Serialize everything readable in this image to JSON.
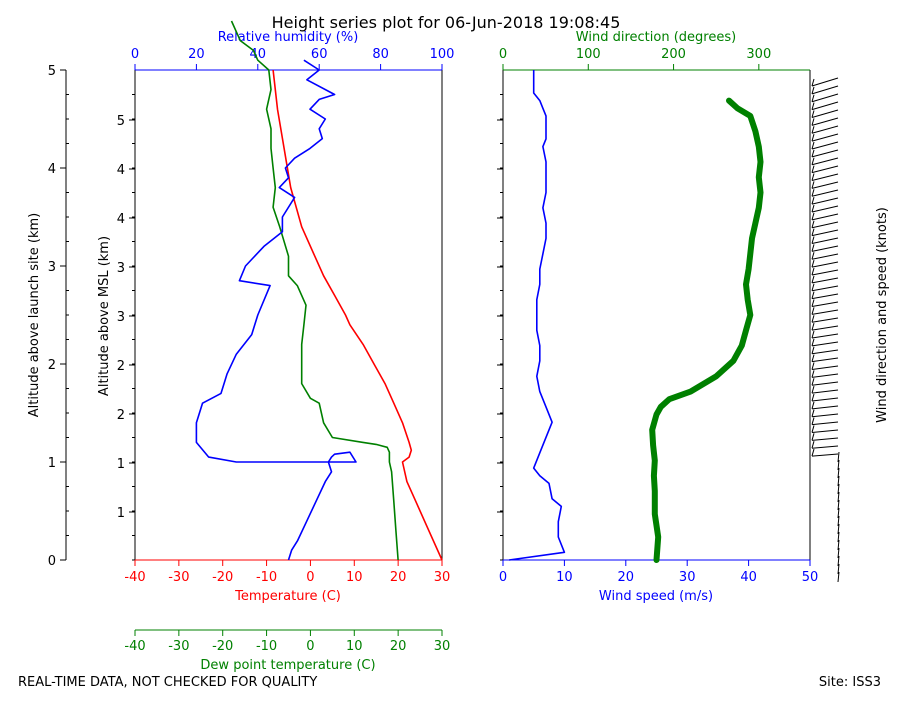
{
  "title": "Height series plot for 06-Jun-2018 19:08:45",
  "footer": {
    "left": "REAL-TIME DATA, NOT CHECKED FOR QUALITY",
    "right": "Site: ISS3"
  },
  "colors": {
    "temperature": "#ff0000",
    "dewpoint": "#008000",
    "humidity": "#0000ff",
    "wind_speed": "#0000ff",
    "wind_direction": "#008000",
    "axis": "#000000"
  },
  "chart_data": [
    {
      "type": "line",
      "name": "thermo",
      "axes": {
        "left_outer": {
          "label": "Altitude above launch site (km)",
          "ticks": [
            0,
            1,
            2,
            3,
            4,
            5
          ],
          "range": [
            0,
            5
          ]
        },
        "left_inner": {
          "label": "Altitude above MSL (km)",
          "ticks": [
            "1",
            "1",
            "2",
            "2",
            "3",
            "3",
            "4",
            "4",
            "5"
          ],
          "range": [
            0.5,
            5.5
          ]
        },
        "bottom": {
          "label": "Temperature (C)",
          "ticks": [
            -40,
            -30,
            -20,
            -10,
            0,
            10,
            20,
            30
          ],
          "range": [
            -40,
            30
          ]
        },
        "bottom2": {
          "label": "Dew point temperature (C)",
          "ticks": [
            -40,
            -30,
            -20,
            -10,
            0,
            10,
            20,
            30
          ],
          "range": [
            -40,
            30
          ]
        },
        "top": {
          "label": "Relative humidity (%)",
          "ticks": [
            0,
            20,
            40,
            60,
            80,
            100
          ],
          "range": [
            0,
            100
          ]
        }
      },
      "series": [
        {
          "name": "Temperature",
          "axis": "bottom",
          "x": [
            30,
            27,
            24,
            22,
            21,
            22.5,
            23,
            22.5,
            21,
            19,
            17,
            14.5,
            12,
            9,
            8,
            5.5,
            3,
            1,
            -2,
            -4.5,
            -6,
            -7.5,
            -8.5
          ],
          "y": [
            0.0,
            0.3,
            0.6,
            0.8,
            1.0,
            1.05,
            1.12,
            1.2,
            1.4,
            1.6,
            1.8,
            2.0,
            2.2,
            2.4,
            2.5,
            2.7,
            2.9,
            3.1,
            3.4,
            3.8,
            4.2,
            4.6,
            5.0
          ]
        },
        {
          "name": "Dew point",
          "axis": "bottom2",
          "x": [
            20,
            19.5,
            19,
            18.5,
            18,
            18,
            17.5,
            15,
            12,
            5,
            3,
            2,
            0,
            -2,
            -2,
            -2,
            -1.5,
            -1,
            -3,
            -5,
            -5,
            -7,
            -8.5,
            -8,
            -8.5,
            -9,
            -9,
            -10,
            -9,
            -9.5,
            -12,
            -13,
            -16,
            -17,
            -18
          ],
          "y": [
            0.0,
            0.3,
            0.6,
            0.9,
            1.0,
            1.1,
            1.15,
            1.18,
            1.2,
            1.25,
            1.4,
            1.6,
            1.65,
            1.8,
            2.0,
            2.2,
            2.4,
            2.6,
            2.8,
            2.9,
            3.1,
            3.4,
            3.6,
            3.8,
            4.0,
            4.2,
            4.4,
            4.6,
            4.8,
            5.0,
            5.1,
            5.2,
            5.3,
            5.4,
            5.5
          ]
        },
        {
          "name": "Relative humidity",
          "axis": "top",
          "x": [
            50,
            51,
            53,
            56,
            59,
            62,
            64,
            63,
            64,
            65,
            70,
            72,
            60,
            33,
            24,
            20,
            20,
            22,
            28,
            30,
            33,
            38,
            40,
            44,
            34,
            36,
            42,
            48,
            48,
            52,
            47,
            50,
            49,
            52,
            57,
            61,
            60,
            62,
            57,
            60,
            65,
            56,
            60,
            55
          ],
          "y": [
            0.0,
            0.1,
            0.2,
            0.4,
            0.6,
            0.8,
            0.9,
            1.0,
            1.05,
            1.08,
            1.1,
            1.0,
            1.0,
            1.0,
            1.05,
            1.2,
            1.4,
            1.6,
            1.7,
            1.9,
            2.1,
            2.3,
            2.5,
            2.8,
            2.85,
            3.0,
            3.2,
            3.35,
            3.5,
            3.7,
            3.8,
            3.9,
            4.0,
            4.1,
            4.2,
            4.3,
            4.4,
            4.5,
            4.6,
            4.7,
            4.75,
            4.9,
            5.0,
            5.1
          ]
        }
      ]
    },
    {
      "type": "line",
      "name": "wind",
      "axes": {
        "bottom": {
          "label": "Wind speed (m/s)",
          "ticks": [
            0,
            10,
            20,
            30,
            40,
            50
          ],
          "range": [
            0,
            50
          ]
        },
        "top": {
          "label": "Wind direction (degrees)",
          "ticks": [
            0,
            100,
            200,
            300
          ],
          "range": [
            0,
            360
          ]
        },
        "right": {
          "label": "Wind direction and speed (knots)"
        }
      },
      "series": [
        {
          "name": "Wind speed",
          "axis": "bottom",
          "x": [
            1,
            10,
            9,
            9,
            9.5,
            8,
            7.5,
            6,
            5,
            6,
            8,
            7,
            6,
            5.5,
            6,
            6,
            5.5,
            5.5,
            5.5,
            6,
            6,
            6.5,
            7,
            7,
            6.5,
            7,
            7,
            7,
            6.5,
            7,
            7,
            7,
            7,
            6.5,
            6,
            5,
            5,
            5,
            5
          ],
          "y": [
            0.0,
            0.1,
            0.3,
            0.5,
            0.7,
            0.8,
            1.0,
            1.1,
            1.2,
            1.4,
            1.8,
            2.0,
            2.2,
            2.4,
            2.6,
            2.8,
            3.0,
            3.2,
            3.4,
            3.6,
            3.8,
            4.0,
            4.2,
            4.4,
            4.6,
            4.8,
            5.0,
            5.2,
            5.4,
            5.5,
            5.6,
            5.7,
            5.8,
            5.9,
            6.0,
            6.1,
            6.2,
            6.3,
            6.4
          ]
        },
        {
          "name": "Wind direction",
          "axis": "top",
          "x": [
            180,
            182,
            178,
            178,
            177,
            178,
            176,
            175,
            180,
            185,
            195,
            220,
            250,
            270,
            280,
            285,
            290,
            287,
            285,
            288,
            290,
            292,
            296,
            300,
            302,
            300,
            302,
            300,
            296,
            290,
            275,
            265
          ],
          "y": [
            0.0,
            0.3,
            0.6,
            0.9,
            1.1,
            1.3,
            1.5,
            1.7,
            1.9,
            2.0,
            2.1,
            2.2,
            2.4,
            2.6,
            2.8,
            3.0,
            3.2,
            3.4,
            3.6,
            3.8,
            4.0,
            4.2,
            4.4,
            4.6,
            4.8,
            5.0,
            5.2,
            5.4,
            5.6,
            5.8,
            5.9,
            6.0
          ]
        }
      ]
    }
  ]
}
